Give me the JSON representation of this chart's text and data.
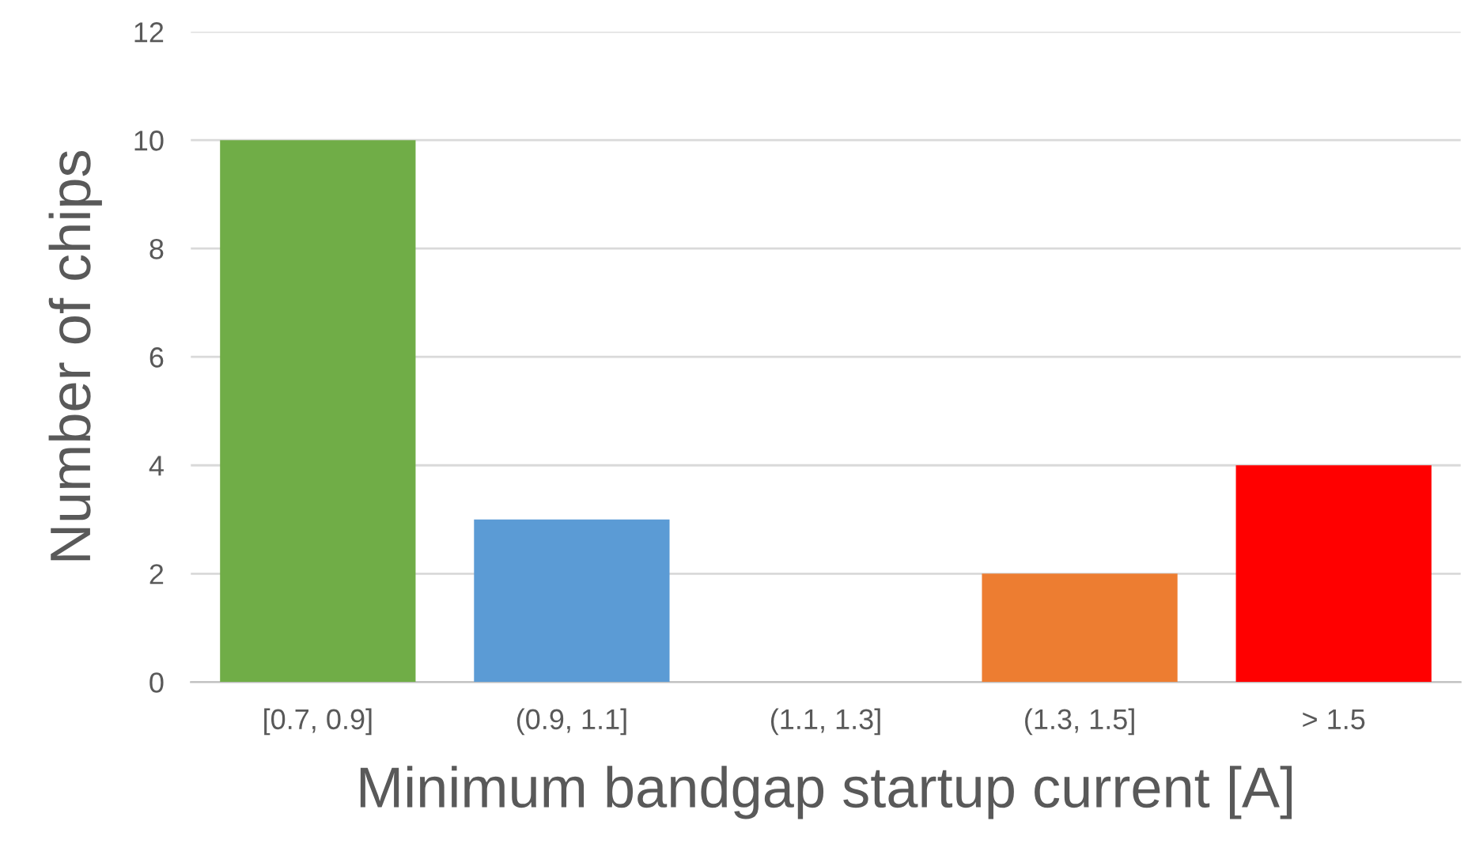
{
  "chart_data": {
    "type": "bar",
    "xlabel": "Minimum bandgap startup current [A]",
    "ylabel": "Number of chips",
    "categories": [
      "[0.7, 0.9]",
      "(0.9, 1.1]",
      "(1.1, 1.3]",
      "(1.3, 1.5]",
      "> 1.5"
    ],
    "values": [
      10,
      3,
      0,
      2,
      4
    ],
    "colors": [
      "#70ad47",
      "#5b9bd5",
      "#a5a5a5",
      "#ed7d31",
      "#ff0000"
    ],
    "ylim": [
      0,
      12
    ],
    "yticks": [
      0,
      2,
      4,
      6,
      8,
      10,
      12
    ],
    "grid": "y",
    "legend": false
  }
}
